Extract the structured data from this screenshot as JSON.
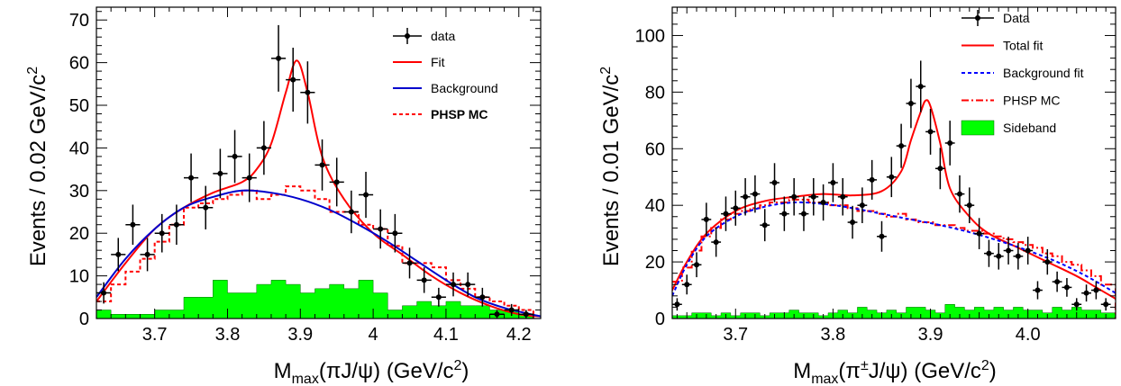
{
  "chart_data": [
    {
      "type": "scatter",
      "ylabel": "Events / 0.02 GeV/c",
      "ylabel_sup": "2",
      "xlabel_main": "M",
      "xlabel_sub": "max",
      "xlabel_rest": "(πJ/ψ) (GeV/c",
      "xlabel_sup": "2",
      "xlabel_end": ")",
      "xlim": [
        3.62,
        4.23
      ],
      "ylim": [
        0,
        73
      ],
      "xticks": [
        3.7,
        3.8,
        3.9,
        4.0,
        4.1,
        4.2
      ],
      "xtick_labels": [
        "3.7",
        "3.8",
        "3.9",
        "4",
        "4.1",
        "4.2"
      ],
      "yticks": [
        0,
        10,
        20,
        30,
        40,
        50,
        60,
        70
      ],
      "ytick_labels": [
        "0",
        "10",
        "20",
        "30",
        "40",
        "50",
        "60",
        "70"
      ],
      "bin_width": 0.02,
      "legend_position": "top-right",
      "legend": [
        {
          "label": "data",
          "style": "marker",
          "color": "#000000"
        },
        {
          "label": "Fit",
          "style": "line",
          "color": "#ff0000"
        },
        {
          "label": "Background",
          "style": "line",
          "color": "#0000cc"
        },
        {
          "label": "PHSP MC",
          "style": "dotted",
          "color": "#ff0000",
          "bold": true
        }
      ],
      "data_points": {
        "x": [
          3.63,
          3.65,
          3.67,
          3.69,
          3.71,
          3.73,
          3.75,
          3.77,
          3.79,
          3.81,
          3.83,
          3.85,
          3.87,
          3.89,
          3.91,
          3.93,
          3.95,
          3.97,
          3.99,
          4.01,
          4.03,
          4.05,
          4.07,
          4.09,
          4.11,
          4.13,
          4.15,
          4.17,
          4.19,
          4.21
        ],
        "y": [
          6,
          15,
          22,
          15,
          20,
          22,
          33,
          26,
          34,
          38,
          33,
          40,
          61,
          56,
          53,
          36,
          32,
          25,
          29,
          21,
          20,
          13,
          9,
          5,
          8,
          8,
          5,
          1,
          2,
          1
        ],
        "yerr": [
          2.5,
          3.9,
          4.7,
          3.9,
          4.5,
          4.7,
          5.7,
          5.1,
          5.8,
          6.2,
          5.7,
          6.3,
          7.8,
          7.5,
          7.3,
          6.0,
          5.7,
          5.0,
          5.4,
          4.6,
          4.5,
          3.6,
          3.0,
          2.2,
          2.8,
          2.8,
          2.2,
          1.0,
          1.4,
          1.0
        ]
      },
      "series": [
        {
          "name": "Fit",
          "x": [
            3.62,
            3.66,
            3.7,
            3.74,
            3.78,
            3.82,
            3.84,
            3.86,
            3.88,
            3.895,
            3.91,
            3.93,
            3.96,
            4.0,
            4.04,
            4.08,
            4.12,
            4.16,
            4.2,
            4.23
          ],
          "y": [
            4,
            13,
            21,
            26,
            29.5,
            32,
            35,
            41,
            53,
            60.5,
            53,
            38,
            28,
            20,
            15,
            10,
            6,
            3,
            1,
            0.5
          ]
        },
        {
          "name": "Background",
          "x": [
            3.62,
            3.66,
            3.7,
            3.74,
            3.78,
            3.82,
            3.86,
            3.9,
            3.94,
            3.98,
            4.02,
            4.06,
            4.1,
            4.14,
            4.18,
            4.23
          ],
          "y": [
            5,
            14,
            21,
            26,
            28.5,
            30,
            29.5,
            28,
            25.5,
            22,
            18,
            13.5,
            9,
            5,
            2.5,
            0.5
          ]
        },
        {
          "name": "PHSP MC",
          "step": true,
          "bins": [
            3.62,
            3.64,
            3.66,
            3.68,
            3.7,
            3.72,
            3.74,
            3.76,
            3.78,
            3.8,
            3.82,
            3.84,
            3.86,
            3.88,
            3.9,
            3.92,
            3.94,
            3.96,
            3.98,
            4.0,
            4.02,
            4.04,
            4.06,
            4.08,
            4.1,
            4.12,
            4.14,
            4.16,
            4.18,
            4.2,
            4.22
          ],
          "y": [
            4,
            8,
            11,
            14,
            18,
            22,
            26,
            27,
            28,
            29,
            30,
            28,
            29,
            31,
            30,
            28,
            25,
            25,
            22,
            21,
            17,
            13,
            13,
            12,
            9,
            7,
            5,
            4,
            3,
            2
          ]
        },
        {
          "name": "Sideband",
          "step": true,
          "filled": true,
          "bins": [
            3.62,
            3.64,
            3.66,
            3.68,
            3.7,
            3.72,
            3.74,
            3.76,
            3.78,
            3.8,
            3.82,
            3.84,
            3.86,
            3.88,
            3.9,
            3.92,
            3.94,
            3.96,
            3.98,
            4.0,
            4.02,
            4.04,
            4.06,
            4.08,
            4.1,
            4.12,
            4.14,
            4.16,
            4.18,
            4.2,
            4.22
          ],
          "y": [
            2,
            1,
            1,
            1,
            2,
            2,
            5,
            5,
            9,
            6,
            6,
            8,
            9,
            8,
            6,
            7,
            8,
            7,
            9,
            6,
            2,
            3,
            4,
            3,
            4,
            3,
            3,
            2,
            2,
            1
          ]
        }
      ]
    },
    {
      "type": "scatter",
      "ylabel": "Events / 0.01 GeV/c",
      "ylabel_sup": "2",
      "xlabel_main": "M",
      "xlabel_sub": "max",
      "xlabel_rest": "(π",
      "xlabel_pm": "±",
      "xlabel_rest2": "J/ψ) (GeV/c",
      "xlabel_sup": "2",
      "xlabel_end": ")",
      "xlim": [
        3.635,
        4.09
      ],
      "ylim": [
        0,
        110
      ],
      "xticks": [
        3.7,
        3.8,
        3.9,
        4.0
      ],
      "xtick_labels": [
        "3.7",
        "3.8",
        "3.9",
        "4.0"
      ],
      "yticks": [
        0,
        20,
        40,
        60,
        80,
        100
      ],
      "ytick_labels": [
        "0",
        "20",
        "40",
        "60",
        "80",
        "100"
      ],
      "bin_width": 0.01,
      "legend_position": "top-right",
      "legend": [
        {
          "label": "Data",
          "style": "marker",
          "color": "#000000"
        },
        {
          "label": "Total fit",
          "style": "line",
          "color": "#ff0000"
        },
        {
          "label": "Background fit",
          "style": "dashed",
          "color": "#0000ff"
        },
        {
          "label": "PHSP MC",
          "style": "dashdot",
          "color": "#ff0000"
        },
        {
          "label": "Sideband",
          "style": "box",
          "color": "#00ff00"
        }
      ],
      "data_points": {
        "x": [
          3.64,
          3.65,
          3.66,
          3.67,
          3.68,
          3.69,
          3.7,
          3.71,
          3.72,
          3.73,
          3.74,
          3.75,
          3.76,
          3.77,
          3.78,
          3.79,
          3.8,
          3.81,
          3.82,
          3.83,
          3.84,
          3.85,
          3.86,
          3.87,
          3.88,
          3.89,
          3.9,
          3.91,
          3.92,
          3.93,
          3.94,
          3.95,
          3.96,
          3.97,
          3.98,
          3.99,
          4.0,
          4.01,
          4.02,
          4.03,
          4.04,
          4.05,
          4.06,
          4.07,
          4.08
        ],
        "y": [
          5,
          12,
          19,
          35,
          27,
          37,
          39,
          43,
          44,
          33,
          48,
          37,
          43,
          37,
          43,
          41,
          48,
          43,
          34,
          40,
          49,
          29,
          50,
          61,
          76,
          82,
          66,
          53,
          62,
          44,
          40,
          30,
          23,
          22,
          24,
          22,
          24,
          10,
          20,
          13,
          11,
          5,
          9,
          10,
          5
        ],
        "yerr": [
          2.2,
          3.5,
          4.4,
          5.9,
          5.2,
          6.1,
          6.2,
          6.6,
          6.6,
          5.7,
          6.9,
          6.1,
          6.6,
          6.1,
          6.6,
          6.4,
          6.9,
          6.6,
          5.8,
          6.3,
          7.0,
          5.4,
          7.1,
          7.8,
          8.7,
          9.1,
          8.1,
          7.3,
          7.9,
          6.6,
          6.3,
          5.5,
          4.8,
          4.7,
          4.9,
          4.7,
          4.9,
          3.2,
          4.5,
          3.6,
          3.3,
          2.2,
          3.0,
          3.2,
          2.2
        ]
      },
      "series": [
        {
          "name": "Total fit",
          "x": [
            3.635,
            3.65,
            3.67,
            3.7,
            3.73,
            3.76,
            3.79,
            3.82,
            3.85,
            3.87,
            3.88,
            3.89,
            3.895,
            3.9,
            3.91,
            3.92,
            3.94,
            3.96,
            3.99,
            4.02,
            4.05,
            4.07,
            4.09
          ],
          "y": [
            10,
            20,
            30,
            38,
            41.5,
            43,
            44,
            43.5,
            45,
            52,
            63,
            73,
            77,
            75,
            62,
            46,
            36,
            30,
            25,
            20,
            15,
            11,
            7
          ]
        },
        {
          "name": "Background fit",
          "x": [
            3.635,
            3.65,
            3.67,
            3.7,
            3.73,
            3.76,
            3.79,
            3.82,
            3.85,
            3.88,
            3.91,
            3.94,
            3.97,
            4.0,
            4.03,
            4.06,
            4.09
          ],
          "y": [
            8,
            19,
            29,
            36,
            39.5,
            41,
            40.5,
            39,
            37,
            35,
            33,
            30.5,
            27.5,
            24,
            20,
            15,
            9
          ]
        },
        {
          "name": "PHSP MC",
          "step": true,
          "bins": [
            3.635,
            3.645,
            3.655,
            3.665,
            3.675,
            3.685,
            3.695,
            3.705,
            3.715,
            3.725,
            3.735,
            3.745,
            3.755,
            3.765,
            3.775,
            3.785,
            3.795,
            3.805,
            3.815,
            3.825,
            3.835,
            3.845,
            3.855,
            3.865,
            3.875,
            3.885,
            3.895,
            3.905,
            3.915,
            3.925,
            3.935,
            3.945,
            3.955,
            3.965,
            3.975,
            3.985,
            3.995,
            4.005,
            4.015,
            4.025,
            4.035,
            4.045,
            4.055,
            4.065,
            4.075,
            4.09
          ],
          "y": [
            13,
            18,
            24,
            29,
            32,
            35,
            37,
            38,
            39,
            40,
            41,
            41,
            42,
            42,
            41,
            41,
            40,
            40,
            39,
            38,
            38,
            37,
            36,
            37,
            35,
            34,
            34,
            33,
            33,
            32,
            31,
            31,
            30,
            29,
            28,
            27,
            26,
            25,
            23,
            22,
            20,
            19,
            17,
            15,
            12
          ]
        },
        {
          "name": "Sideband",
          "step": true,
          "filled": true,
          "bins": [
            3.635,
            3.645,
            3.655,
            3.665,
            3.675,
            3.685,
            3.695,
            3.705,
            3.715,
            3.725,
            3.735,
            3.745,
            3.755,
            3.765,
            3.775,
            3.785,
            3.795,
            3.805,
            3.815,
            3.825,
            3.835,
            3.845,
            3.855,
            3.865,
            3.875,
            3.885,
            3.895,
            3.905,
            3.915,
            3.925,
            3.935,
            3.945,
            3.955,
            3.965,
            3.975,
            3.985,
            3.995,
            4.005,
            4.015,
            4.025,
            4.035,
            4.045,
            4.055,
            4.065,
            4.075,
            4.09
          ],
          "y": [
            1,
            1,
            2,
            2,
            1,
            2,
            1,
            2,
            2,
            1,
            2,
            2,
            3,
            2,
            2,
            1,
            2,
            3,
            2,
            4,
            3,
            2,
            3,
            2,
            4,
            4,
            3,
            2,
            5,
            4,
            3,
            4,
            3,
            4,
            3,
            4,
            3,
            3,
            2,
            4,
            3,
            4,
            3,
            3,
            2
          ]
        }
      ]
    }
  ]
}
